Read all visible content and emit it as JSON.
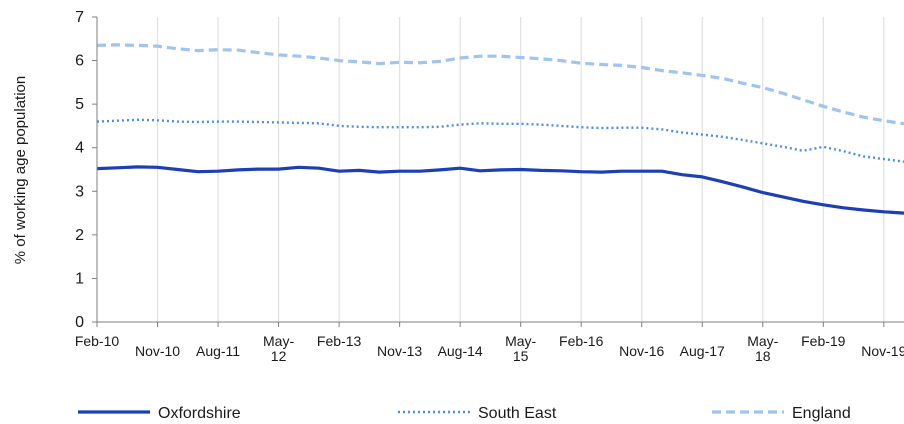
{
  "chart_data": {
    "type": "line",
    "ylabel": "% of working age population",
    "xlabel": "",
    "ylim": [
      0,
      7
    ],
    "yticks": [
      "0",
      "1",
      "2",
      "3",
      "4",
      "5",
      "6",
      "7"
    ],
    "x_tick_labels": [
      {
        "index": 0,
        "label": [
          "Feb-10"
        ],
        "row": 0
      },
      {
        "index": 3,
        "label": [
          "Nov-10"
        ],
        "row": 1
      },
      {
        "index": 6,
        "label": [
          "Aug-11"
        ],
        "row": 1
      },
      {
        "index": 9,
        "label": [
          "May-",
          "12"
        ],
        "row": 0
      },
      {
        "index": 12,
        "label": [
          "Feb-13"
        ],
        "row": 0
      },
      {
        "index": 15,
        "label": [
          "Nov-13"
        ],
        "row": 1
      },
      {
        "index": 18,
        "label": [
          "Aug-14"
        ],
        "row": 1
      },
      {
        "index": 21,
        "label": [
          "May-",
          "15"
        ],
        "row": 0
      },
      {
        "index": 24,
        "label": [
          "Feb-16"
        ],
        "row": 0
      },
      {
        "index": 27,
        "label": [
          "Nov-16"
        ],
        "row": 1
      },
      {
        "index": 30,
        "label": [
          "Aug-17"
        ],
        "row": 1
      },
      {
        "index": 33,
        "label": [
          "May-",
          "18"
        ],
        "row": 0
      },
      {
        "index": 36,
        "label": [
          "Feb-19"
        ],
        "row": 0
      },
      {
        "index": 39,
        "label": [
          "Nov-19"
        ],
        "row": 1
      }
    ],
    "x_count": 41,
    "grid": "vertical",
    "legend_position": "bottom",
    "series": [
      {
        "name": "Oxfordshire",
        "color": "#1c3fb5",
        "style": "solid",
        "values": [
          3.52,
          3.54,
          3.56,
          3.55,
          3.5,
          3.45,
          3.46,
          3.49,
          3.51,
          3.51,
          3.55,
          3.53,
          3.46,
          3.48,
          3.44,
          3.46,
          3.46,
          3.49,
          3.53,
          3.47,
          3.49,
          3.5,
          3.48,
          3.47,
          3.45,
          3.44,
          3.46,
          3.46,
          3.46,
          3.38,
          3.33,
          3.22,
          3.1,
          2.97,
          2.87,
          2.77,
          2.69,
          2.62,
          2.57,
          2.53,
          2.5
        ]
      },
      {
        "name": "South East",
        "color": "#4a8ee6",
        "style": "dotted",
        "values": [
          4.6,
          4.62,
          4.64,
          4.63,
          4.6,
          4.59,
          4.6,
          4.6,
          4.59,
          4.58,
          4.57,
          4.56,
          4.5,
          4.48,
          4.47,
          4.47,
          4.47,
          4.48,
          4.53,
          4.56,
          4.55,
          4.55,
          4.53,
          4.5,
          4.47,
          4.45,
          4.46,
          4.46,
          4.42,
          4.35,
          4.3,
          4.25,
          4.18,
          4.1,
          4.02,
          3.93,
          4.02,
          3.92,
          3.8,
          3.74,
          3.68
        ]
      },
      {
        "name": "England",
        "color": "#9fc4ee",
        "style": "dashed",
        "values": [
          6.35,
          6.36,
          6.35,
          6.33,
          6.27,
          6.23,
          6.25,
          6.24,
          6.18,
          6.13,
          6.1,
          6.06,
          6.0,
          5.97,
          5.93,
          5.96,
          5.95,
          5.98,
          6.06,
          6.1,
          6.1,
          6.07,
          6.04,
          6.0,
          5.94,
          5.91,
          5.89,
          5.84,
          5.77,
          5.72,
          5.66,
          5.59,
          5.48,
          5.38,
          5.25,
          5.1,
          4.95,
          4.82,
          4.7,
          4.62,
          4.55
        ]
      }
    ]
  }
}
